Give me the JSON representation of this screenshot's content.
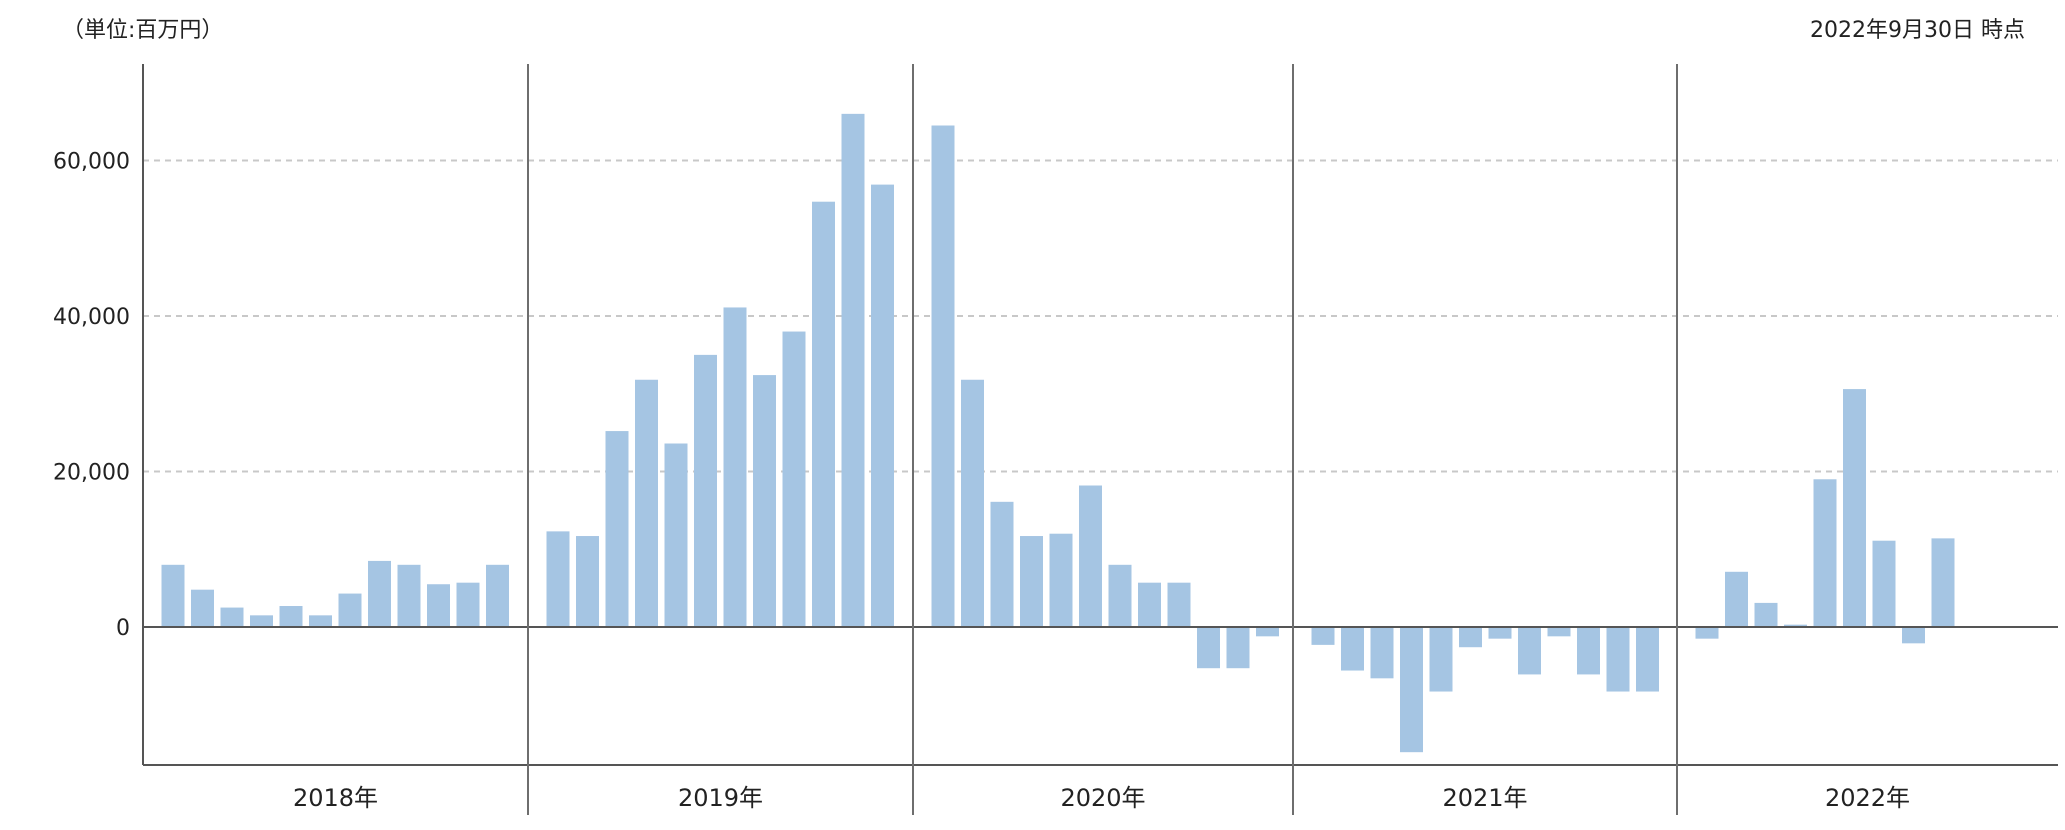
{
  "header": {
    "unit_label": "（単位:百万円）",
    "as_of": "2022年9月30日 時点"
  },
  "colors": {
    "bar": "#a5c5e3",
    "grid": "#c8c8c8",
    "axis": "#555555",
    "divider": "#6e6e6e"
  },
  "chart_data": {
    "type": "bar",
    "title": "",
    "xlabel": "",
    "ylabel": "",
    "ylim": [
      -18000,
      72000
    ],
    "yticks": [
      0,
      20000,
      40000,
      60000
    ],
    "ytick_labels": [
      "0",
      "20,000",
      "40,000",
      "60,000"
    ],
    "grid": "horizontal dashed at y ticks",
    "years": [
      {
        "label": "2018年",
        "values": [
          8000,
          4800,
          2500,
          1500,
          2700,
          1500,
          4300,
          8500,
          8000,
          5500,
          5700,
          8000
        ]
      },
      {
        "label": "2019年",
        "values": [
          12300,
          11700,
          25200,
          31800,
          23600,
          35000,
          41100,
          32400,
          38000,
          54700,
          66000,
          56900
        ]
      },
      {
        "label": "2020年",
        "values": [
          64500,
          31800,
          16100,
          11700,
          12000,
          18200,
          8000,
          5700,
          5700,
          -5300,
          -5300,
          -1200
        ]
      },
      {
        "label": "2021年",
        "values": [
          -2300,
          -5600,
          -6600,
          -16100,
          -8300,
          -2600,
          -1500,
          -6100,
          -1200,
          -6100,
          -8300,
          -8300
        ]
      },
      {
        "label": "2022年",
        "values": [
          -1500,
          7100,
          3100,
          300,
          19000,
          30600,
          11100,
          -2100,
          11400
        ]
      }
    ]
  }
}
